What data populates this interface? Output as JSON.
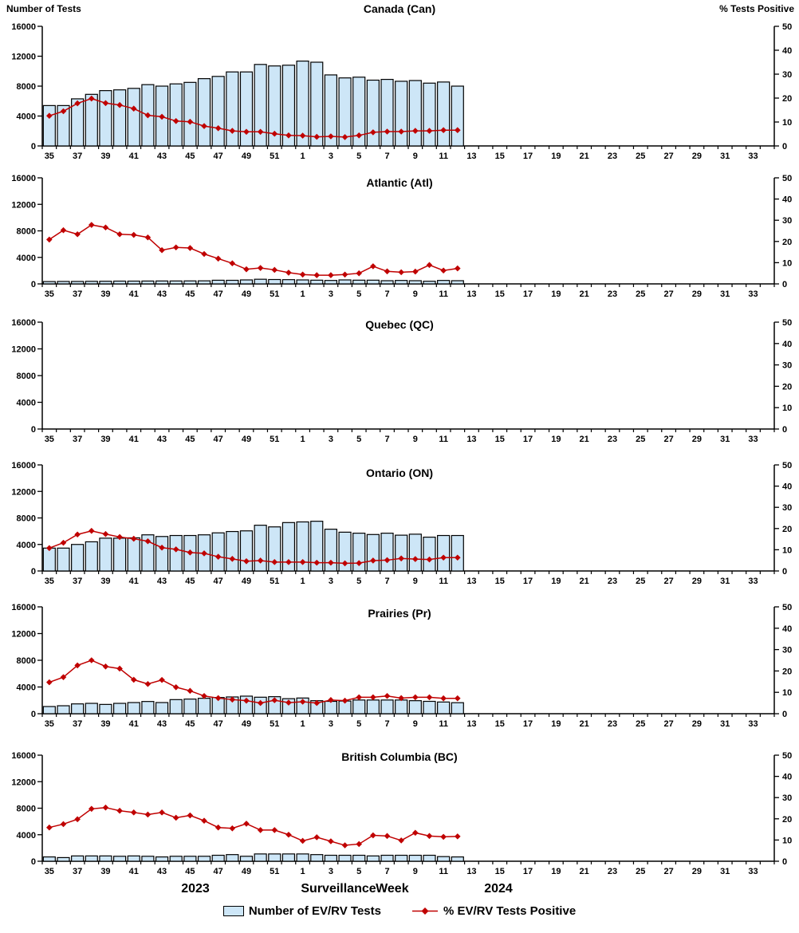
{
  "header": {
    "left_axis_title": "Number of Tests",
    "right_axis_title": "% Tests Positive"
  },
  "footer": {
    "year_left": "2023",
    "axis_title": "Surveillance Week",
    "year_right": "2024"
  },
  "legend": {
    "bars_label": "Number of EV/RV Tests",
    "line_label": "% EV/RV Tests Positive"
  },
  "chart_data": {
    "type": "bar+line, 6 stacked panels, dual y-axes",
    "categories_weeks": [
      35,
      36,
      37,
      38,
      39,
      40,
      41,
      42,
      43,
      44,
      45,
      46,
      47,
      48,
      49,
      50,
      51,
      52,
      1,
      2,
      3,
      4,
      5,
      6,
      7,
      8,
      9,
      10,
      11,
      12,
      13,
      14,
      15,
      16,
      17,
      18,
      19,
      20,
      21,
      22,
      23,
      24,
      25,
      26,
      27,
      28,
      29,
      30,
      31,
      32,
      33,
      34
    ],
    "weeks_with_data": [
      35,
      36,
      37,
      38,
      39,
      40,
      41,
      42,
      43,
      44,
      45,
      46,
      47,
      48,
      49,
      50,
      51,
      52,
      1,
      2,
      3,
      4,
      5,
      6,
      7,
      8,
      9,
      10,
      11,
      12
    ],
    "x_tick_labels": [
      "35",
      "37",
      "39",
      "41",
      "43",
      "45",
      "47",
      "49",
      "51",
      "1",
      "3",
      "5",
      "7",
      "9",
      "11",
      "13",
      "15",
      "17",
      "19",
      "21",
      "23",
      "25",
      "27",
      "29",
      "31",
      "33"
    ],
    "left_axis": {
      "title": "Number of Tests",
      "ticks": [
        0,
        4000,
        8000,
        12000,
        16000
      ],
      "max": 16000
    },
    "right_axis": {
      "title": "% Tests Positive",
      "ticks": [
        0,
        10,
        20,
        30,
        40,
        50
      ],
      "max": 50
    },
    "legend_position": "bottom",
    "grid": false,
    "colors": {
      "bar_fill": "#CDE6F7",
      "bar_border": "#000000",
      "line": "#C00000"
    },
    "panels": [
      {
        "title": "Canada (Can)",
        "bars": [
          5400,
          5400,
          6300,
          6900,
          7400,
          7500,
          7700,
          8200,
          8000,
          8300,
          8500,
          9000,
          9300,
          9900,
          9900,
          10900,
          10700,
          10800,
          11350,
          11200,
          9500,
          9100,
          9200,
          8800,
          8900,
          8650,
          8750,
          8400,
          8550,
          8000
        ],
        "pct_positive": [
          12.6,
          14.5,
          17.8,
          19.8,
          17.9,
          17.1,
          15.6,
          12.8,
          12.2,
          10.4,
          10.1,
          8.3,
          7.4,
          6.3,
          5.9,
          5.9,
          5.1,
          4.4,
          4.3,
          3.8,
          4.0,
          3.7,
          4.4,
          5.7,
          6.0,
          6.0,
          6.3,
          6.3,
          6.6,
          6.6
        ]
      },
      {
        "title": "Atlantic (Atl)",
        "bars": [
          350,
          370,
          370,
          390,
          400,
          420,
          420,
          430,
          440,
          440,
          450,
          460,
          550,
          540,
          600,
          700,
          660,
          640,
          600,
          560,
          520,
          600,
          560,
          560,
          480,
          520,
          480,
          400,
          520,
          480
        ],
        "pct_positive": [
          20.9,
          25.3,
          23.4,
          27.8,
          26.6,
          23.4,
          23.1,
          21.9,
          15.9,
          17.2,
          16.9,
          14.1,
          11.9,
          9.7,
          6.9,
          7.5,
          6.6,
          5.3,
          4.4,
          4.1,
          4.1,
          4.4,
          5.0,
          8.3,
          5.9,
          5.5,
          5.8,
          8.9,
          6.3,
          7.3
        ]
      },
      {
        "title": "Quebec (QC)",
        "bars": [],
        "pct_positive": []
      },
      {
        "title": "Ontario (ON)",
        "bars": [
          3450,
          3450,
          4000,
          4400,
          4950,
          4950,
          5000,
          5450,
          5200,
          5350,
          5350,
          5450,
          5750,
          5950,
          6050,
          6900,
          6650,
          7300,
          7400,
          7500,
          6300,
          5850,
          5700,
          5500,
          5700,
          5400,
          5550,
          5100,
          5350,
          5350
        ],
        "pct_positive": [
          10.8,
          13.3,
          17.2,
          18.9,
          17.4,
          16.0,
          15.2,
          14.0,
          11.0,
          10.2,
          8.7,
          8.3,
          6.7,
          5.7,
          4.6,
          4.9,
          4.2,
          4.2,
          4.2,
          3.9,
          3.9,
          3.6,
          3.7,
          4.9,
          5.1,
          5.9,
          5.6,
          5.4,
          6.3,
          6.3
        ]
      },
      {
        "title": "Prairies (Pr)",
        "bars": [
          1075,
          1190,
          1470,
          1550,
          1390,
          1550,
          1670,
          1830,
          1670,
          2110,
          2190,
          2310,
          2430,
          2510,
          2630,
          2470,
          2550,
          2250,
          2350,
          1950,
          1850,
          1900,
          2050,
          2050,
          2050,
          2050,
          1950,
          1850,
          1750,
          1650
        ],
        "pct_positive": [
          14.7,
          17.1,
          22.6,
          25.0,
          22.1,
          21.1,
          15.9,
          13.9,
          15.8,
          12.4,
          10.7,
          8.3,
          7.3,
          6.6,
          6.1,
          5.0,
          6.3,
          5.2,
          5.6,
          5.0,
          6.4,
          6.1,
          7.7,
          7.7,
          8.3,
          7.3,
          7.7,
          7.7,
          7.2,
          7.2
        ]
      },
      {
        "title": "British Columbia (BC)",
        "bars": [
          650,
          550,
          800,
          800,
          800,
          750,
          800,
          750,
          650,
          750,
          750,
          750,
          900,
          1000,
          750,
          1100,
          1100,
          1100,
          1100,
          1000,
          900,
          900,
          900,
          800,
          900,
          900,
          900,
          900,
          700,
          650
        ],
        "pct_positive": [
          15.9,
          17.5,
          19.8,
          24.7,
          25.3,
          23.8,
          23.0,
          22.0,
          23.0,
          20.5,
          21.6,
          19.1,
          15.9,
          15.5,
          17.7,
          14.7,
          14.7,
          12.5,
          9.6,
          11.3,
          9.4,
          7.5,
          8.1,
          12.2,
          11.9,
          9.8,
          13.4,
          11.9,
          11.5,
          11.7
        ]
      }
    ]
  }
}
